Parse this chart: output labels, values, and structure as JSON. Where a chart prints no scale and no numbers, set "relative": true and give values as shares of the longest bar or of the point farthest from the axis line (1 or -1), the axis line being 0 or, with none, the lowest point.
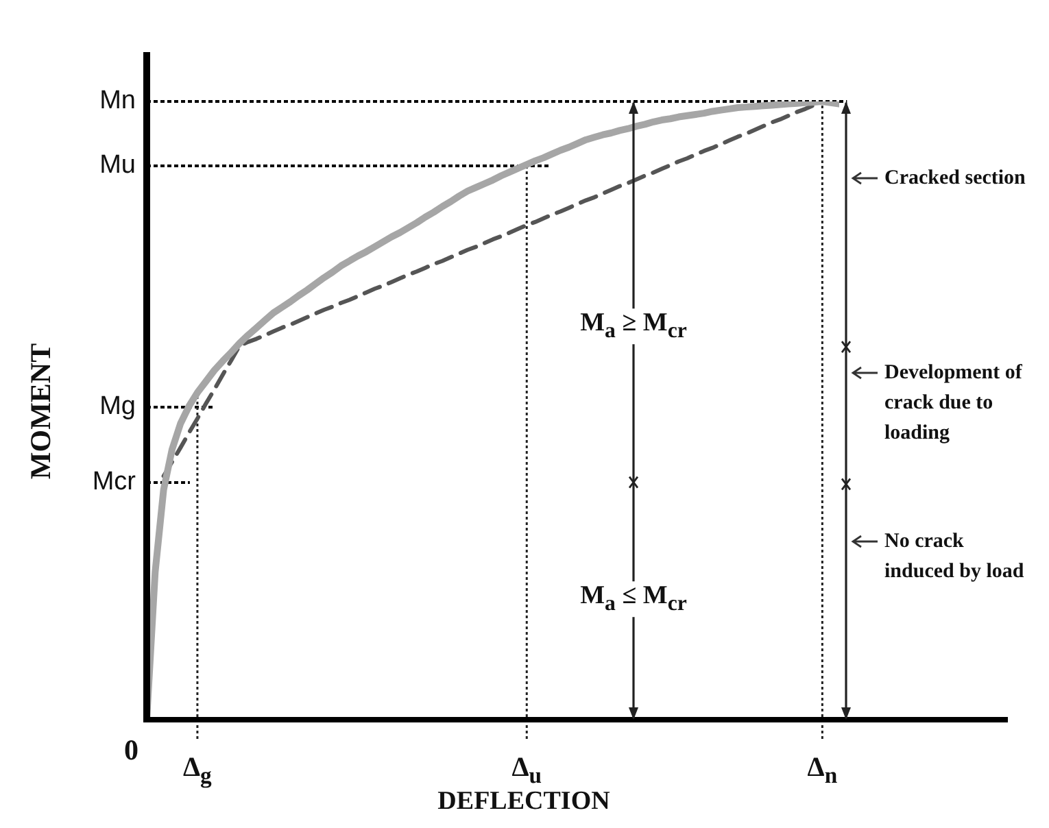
{
  "chart_data": {
    "type": "line",
    "relative": true,
    "xlabel": "DEFLECTION",
    "ylabel": "MOMENT",
    "marker": "none",
    "legend": false,
    "categories": [
      null,
      null,
      null,
      null,
      null,
      null,
      "Δ$_{g}$",
      null,
      null,
      null,
      null,
      null,
      null,
      null,
      null,
      null,
      null,
      null,
      null,
      null,
      null,
      null,
      null,
      null,
      null,
      null,
      null,
      null,
      null,
      null,
      null,
      null,
      null,
      null,
      null,
      null,
      null,
      null,
      null,
      null,
      null,
      null,
      null,
      null,
      null,
      "Δ$_{u}$",
      null,
      null,
      null,
      null,
      null,
      null,
      null,
      null,
      null,
      null,
      null,
      null,
      null,
      null,
      null,
      null,
      null,
      null,
      null,
      null,
      null,
      null,
      null,
      null,
      null,
      null,
      null,
      null,
      null,
      null,
      null,
      null,
      null,
      null,
      "Δ$_{n}$",
      null,
      null
    ],
    "series": [
      {
        "color": "#a6a6a6",
        "line_style": "solid",
        "values": [
          0,
          0.239,
          0.372,
          0.437,
          0.479,
          0.507,
          0.529,
          0.547,
          0.565,
          0.58,
          0.594,
          0.609,
          0.622,
          0.634,
          0.646,
          0.658,
          0.667,
          0.676,
          0.686,
          0.695,
          0.705,
          0.715,
          0.724,
          0.734,
          0.742,
          0.75,
          0.757,
          0.765,
          0.773,
          0.781,
          0.788,
          0.796,
          0.804,
          0.813,
          0.821,
          0.83,
          0.838,
          0.847,
          0.855,
          0.861,
          0.867,
          0.873,
          0.88,
          0.886,
          0.892,
          0.898,
          0.904,
          0.909,
          0.915,
          0.921,
          0.926,
          0.932,
          0.938,
          0.942,
          0.946,
          0.949,
          0.953,
          0.956,
          0.96,
          0.963,
          0.967,
          0.97,
          0.972,
          0.975,
          0.977,
          0.979,
          0.981,
          0.984,
          0.986,
          0.988,
          0.99,
          0.991,
          0.992,
          0.993,
          0.994,
          0.995,
          0.996,
          0.997,
          0.998,
          0.999,
          1,
          0.998,
          0.996
        ]
      },
      {
        "color": "#555555",
        "line_style": "dashed",
        "values": [
          null,
          null,
          0.394,
          0.417,
          0.44,
          0.464,
          0.487,
          0.511,
          0.534,
          0.558,
          0.581,
          0.605,
          0.611,
          0.616,
          0.622,
          0.628,
          0.634,
          0.639,
          0.645,
          0.651,
          0.657,
          0.663,
          0.668,
          0.674,
          0.679,
          0.685,
          0.691,
          0.697,
          0.702,
          0.708,
          0.714,
          0.72,
          0.725,
          0.731,
          0.737,
          0.742,
          0.748,
          0.754,
          0.76,
          0.765,
          0.771,
          0.777,
          0.782,
          0.788,
          0.794,
          0.8,
          0.805,
          0.811,
          0.817,
          0.822,
          0.828,
          0.834,
          0.84,
          0.845,
          0.851,
          0.857,
          0.863,
          0.868,
          0.874,
          0.88,
          0.885,
          0.891,
          0.897,
          0.903,
          0.908,
          0.914,
          0.92,
          0.925,
          0.931,
          0.937,
          0.943,
          0.948,
          0.954,
          0.96,
          0.966,
          0.971,
          0.977,
          0.983,
          0.988,
          0.994,
          1,
          null,
          null
        ]
      }
    ],
    "ref_lines": [
      {
        "axis": "y",
        "value": 1,
        "label": "Mn",
        "line_style": "dotted"
      },
      {
        "axis": "y",
        "value": 0.896,
        "label": "Mu",
        "line_style": "dotted"
      },
      {
        "axis": "y",
        "value": 0.506,
        "label": "Mg",
        "line_style": "dotted"
      },
      {
        "axis": "y",
        "value": 0.384,
        "label": "Mcr",
        "line_style": "dotted"
      }
    ],
    "annotations": [
      "M$_{a}$ ≥ M$_{cr}$",
      "M$_{a}$ ≤ M$_{cr}$",
      "Cracked section",
      "Development of crack due to loading",
      "No crack induced by load",
      "0"
    ]
  }
}
